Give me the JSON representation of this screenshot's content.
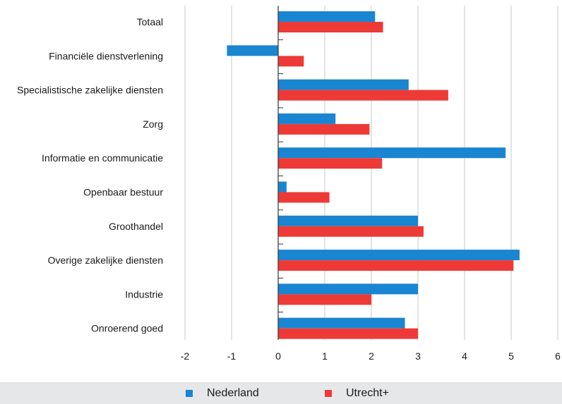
{
  "chart_data": {
    "type": "bar",
    "orientation": "horizontal",
    "categories": [
      "Totaal",
      "Financiële dienstverlening",
      "Specialistische zakelijke diensten",
      "Zorg",
      "Informatie en communicatie",
      "Openbaar bestuur",
      "Groothandel",
      "Overige zakelijke diensten",
      "Industrie",
      "Onroerend goed"
    ],
    "series": [
      {
        "name": "Nederland",
        "color": "#1a85d1",
        "values": [
          2.08,
          -1.1,
          2.8,
          1.23,
          4.88,
          0.18,
          3.0,
          5.18,
          3.0,
          2.72
        ]
      },
      {
        "name": "Utrecht+",
        "color": "#ee3a36",
        "values": [
          2.25,
          0.55,
          3.65,
          1.96,
          2.23,
          1.1,
          3.12,
          5.05,
          2.0,
          3.0
        ]
      }
    ],
    "xlim": [
      -2,
      6
    ],
    "xticks": [
      "-2",
      "-1",
      "0",
      "1",
      "2",
      "3",
      "4",
      "5",
      "6"
    ],
    "grid": true,
    "legend_position": "bottom",
    "gridline_color": "#c8c8c8"
  }
}
